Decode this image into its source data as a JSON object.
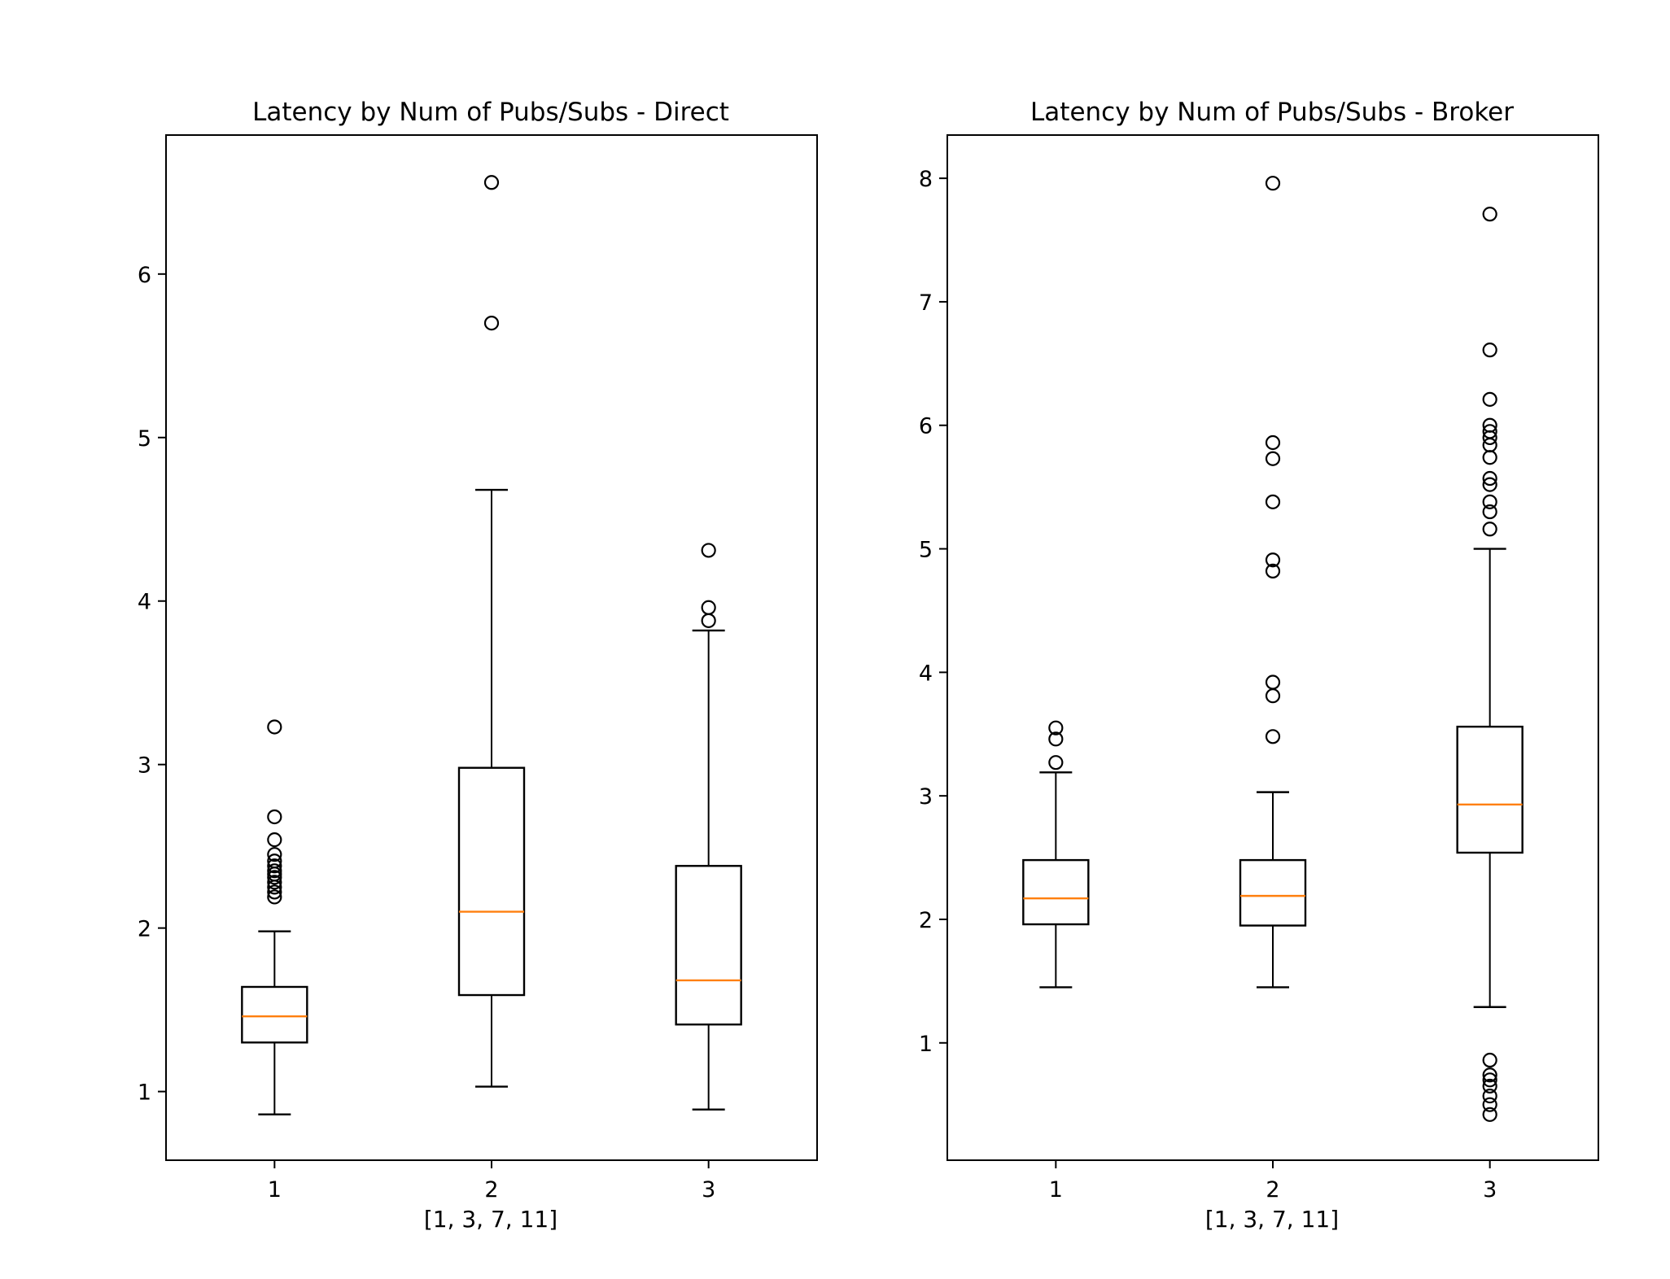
{
  "chart_data": [
    {
      "type": "boxplot",
      "title": "Latency by Num of Pubs/Subs - Direct",
      "xlabel": "[1, 3, 7, 11]",
      "ylabel": "",
      "categories": [
        "1",
        "2",
        "3"
      ],
      "yticks": [
        1,
        2,
        3,
        4,
        5,
        6
      ],
      "ylim": [
        0.58,
        6.85
      ],
      "grid": false,
      "median_color": "#ff7f0e",
      "boxes": [
        {
          "whisker_low": 0.86,
          "q1": 1.3,
          "median": 1.46,
          "q3": 1.64,
          "whisker_high": 1.98,
          "outliers": [
            2.19,
            2.22,
            2.25,
            2.28,
            2.31,
            2.33,
            2.35,
            2.38,
            2.41,
            2.45,
            2.54,
            2.68,
            3.23
          ]
        },
        {
          "whisker_low": 1.03,
          "q1": 1.59,
          "median": 2.1,
          "q3": 2.98,
          "whisker_high": 4.68,
          "outliers": [
            5.7,
            6.56
          ]
        },
        {
          "whisker_low": 0.89,
          "q1": 1.41,
          "median": 1.68,
          "q3": 2.38,
          "whisker_high": 3.82,
          "outliers": [
            3.88,
            3.96,
            4.31
          ]
        }
      ]
    },
    {
      "type": "boxplot",
      "title": "Latency by Num of Pubs/Subs  - Broker",
      "xlabel": "[1, 3, 7, 11]",
      "ylabel": "",
      "categories": [
        "1",
        "2",
        "3"
      ],
      "yticks": [
        1,
        2,
        3,
        4,
        5,
        6,
        7,
        8
      ],
      "ylim": [
        0.05,
        8.35
      ],
      "grid": false,
      "median_color": "#ff7f0e",
      "boxes": [
        {
          "whisker_low": 1.45,
          "q1": 1.96,
          "median": 2.17,
          "q3": 2.48,
          "whisker_high": 3.19,
          "outliers": [
            3.27,
            3.46,
            3.55
          ]
        },
        {
          "whisker_low": 1.45,
          "q1": 1.95,
          "median": 2.19,
          "q3": 2.48,
          "whisker_high": 3.03,
          "outliers": [
            3.48,
            3.81,
            3.92,
            4.82,
            4.91,
            5.38,
            5.73,
            5.86,
            7.96
          ]
        },
        {
          "whisker_low": 1.29,
          "q1": 2.54,
          "median": 2.93,
          "q3": 3.56,
          "whisker_high": 5.0,
          "outliers": [
            0.42,
            0.5,
            0.57,
            0.65,
            0.7,
            0.74,
            0.86,
            5.16,
            5.3,
            5.38,
            5.52,
            5.57,
            5.74,
            5.84,
            5.9,
            5.95,
            6.0,
            6.21,
            6.61,
            7.71
          ]
        }
      ]
    }
  ]
}
